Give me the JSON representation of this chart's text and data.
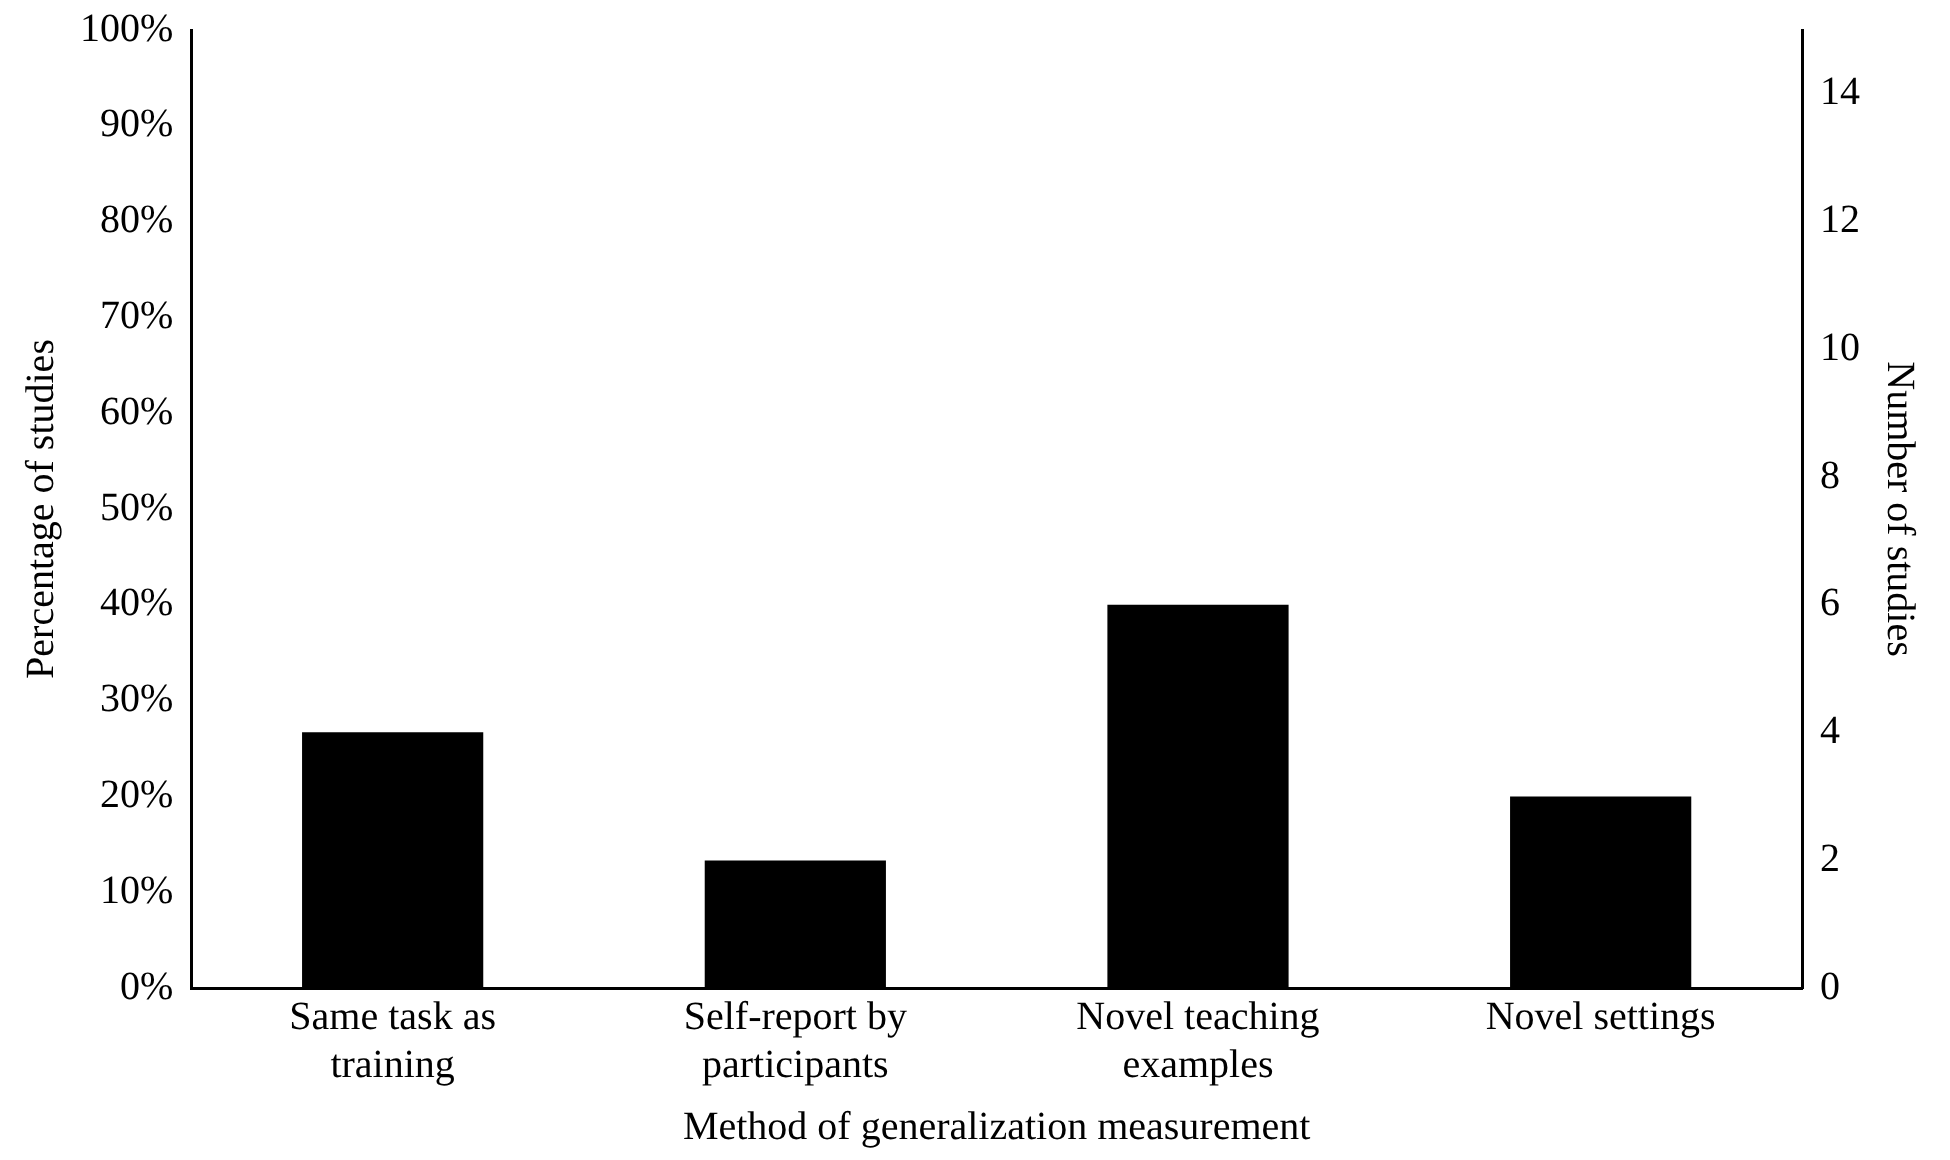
{
  "chart_data": {
    "type": "bar",
    "xlabel": "Method of generalization measurement",
    "ylabel": "Percentage of studies",
    "y2label": "Number of studies",
    "categories": [
      "Same task as training",
      "Self-report by participants",
      "Novel teaching examples",
      "Novel settings"
    ],
    "values": [
      26.7,
      13.3,
      40,
      20
    ],
    "color": "#000000",
    "ylim": [
      0,
      100
    ],
    "yticks": [
      {
        "value": 0,
        "label": "0%"
      },
      {
        "value": 10,
        "label": "10%"
      },
      {
        "value": 20,
        "label": "20%"
      },
      {
        "value": 30,
        "label": "30%"
      },
      {
        "value": 40,
        "label": "40%"
      },
      {
        "value": 50,
        "label": "50%"
      },
      {
        "value": 60,
        "label": "60%"
      },
      {
        "value": 70,
        "label": "70%"
      },
      {
        "value": 80,
        "label": "80%"
      },
      {
        "value": 90,
        "label": "90%"
      },
      {
        "value": 100,
        "label": "100%"
      }
    ],
    "y2lim": [
      0,
      15
    ],
    "y2ticks": [
      0,
      2,
      4,
      6,
      8,
      10,
      12,
      14
    ],
    "grid": false,
    "legend": false
  }
}
